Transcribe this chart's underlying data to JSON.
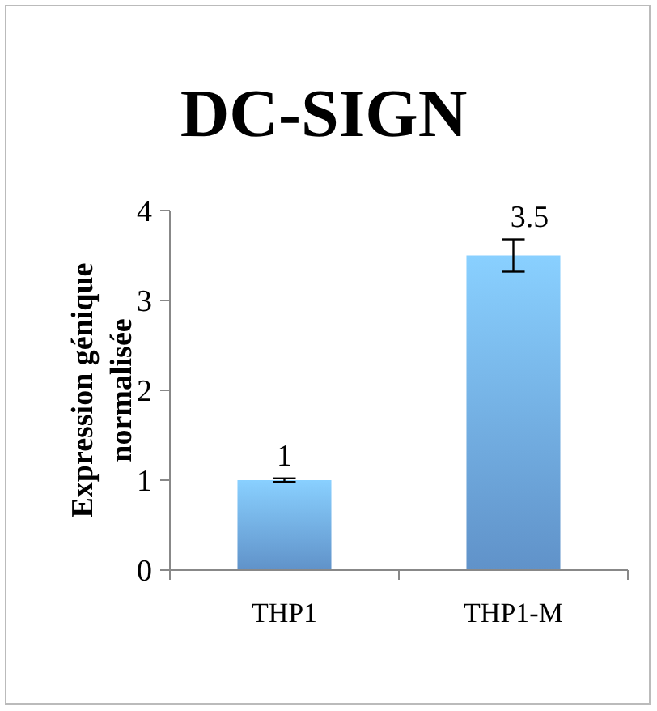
{
  "chart_data": {
    "type": "bar",
    "title": "DC-SIGN",
    "ylabel": "Expression génique normalisée",
    "categories": [
      "THP1",
      "THP1-M"
    ],
    "values": [
      1,
      3.5
    ],
    "errors": [
      0.02,
      0.18
    ],
    "color": "#6fa8e8",
    "ylim": [
      0,
      4
    ],
    "yticks": [
      0,
      1,
      2,
      3,
      4
    ],
    "data_labels": true,
    "grid": false
  }
}
